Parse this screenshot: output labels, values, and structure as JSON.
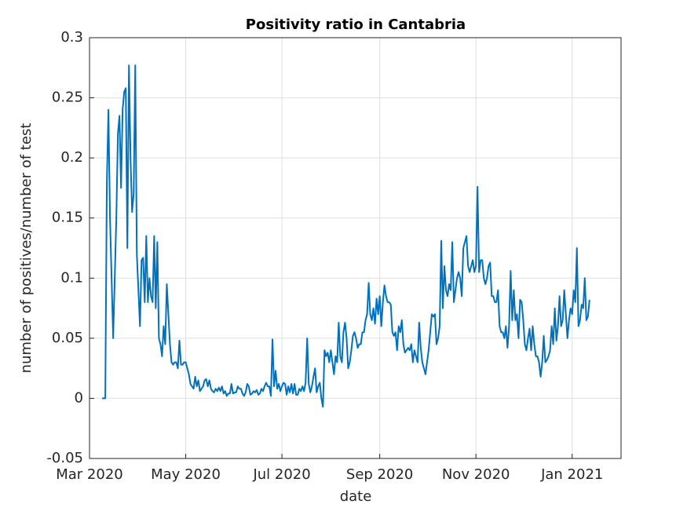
{
  "chart_data": {
    "type": "line",
    "title": "Positivity ratio in Cantabria",
    "xlabel": "date",
    "ylabel": "number of positives/number of test",
    "xlim": [
      0,
      337
    ],
    "xticks": [
      {
        "value": 0,
        "label": "Mar 2020"
      },
      {
        "value": 61,
        "label": "May 2020"
      },
      {
        "value": 122,
        "label": "Jul 2020"
      },
      {
        "value": 184,
        "label": "Sep 2020"
      },
      {
        "value": 245,
        "label": "Nov 2020"
      },
      {
        "value": 306,
        "label": "Jan 2021"
      }
    ],
    "ylim": [
      -0.05,
      0.3
    ],
    "yticks": [
      -0.05,
      0,
      0.05,
      0.1,
      0.15,
      0.2,
      0.25,
      0.3
    ],
    "grid": true,
    "series": [
      {
        "color": "#0072bd",
        "x": [
          8,
          9,
          10,
          11,
          12,
          13,
          14,
          15,
          16,
          17,
          18,
          19,
          20,
          21,
          22,
          23,
          24,
          25,
          26,
          27,
          28,
          29,
          30,
          31,
          32,
          33,
          34,
          35,
          36,
          37,
          38,
          39,
          40,
          41,
          42,
          43,
          44,
          45,
          46,
          47,
          48,
          49,
          50,
          51,
          52,
          53,
          54,
          55,
          56,
          57,
          58,
          59,
          60,
          61,
          62,
          63,
          64,
          65,
          66,
          67,
          68,
          69,
          70,
          71,
          72,
          73,
          74,
          75,
          76,
          77,
          78,
          79,
          80,
          81,
          82,
          83,
          84,
          85,
          86,
          87,
          88,
          89,
          90,
          91,
          92,
          93,
          94,
          95,
          96,
          97,
          98,
          99,
          100,
          101,
          102,
          103,
          104,
          105,
          106,
          107,
          108,
          109,
          110,
          111,
          112,
          113,
          114,
          115,
          116,
          117,
          118,
          119,
          120,
          121,
          122,
          123,
          124,
          125,
          126,
          127,
          128,
          129,
          130,
          131,
          132,
          133,
          134,
          135,
          136,
          137,
          138,
          139,
          140,
          141,
          142,
          143,
          144,
          145,
          146,
          147,
          148,
          149,
          150,
          151,
          152,
          153,
          154,
          155,
          156,
          157,
          158,
          159,
          160,
          161,
          162,
          163,
          164,
          165,
          166,
          167,
          168,
          169,
          170,
          171,
          172,
          173,
          174,
          175,
          176,
          177,
          178,
          179,
          180,
          181,
          182,
          183,
          184,
          185,
          186,
          187,
          188,
          189,
          190,
          191,
          192,
          193,
          194,
          195,
          196,
          197,
          198,
          199,
          200,
          201,
          202,
          203,
          204,
          205,
          206,
          207,
          208,
          209,
          210,
          211,
          212,
          213,
          214,
          215,
          216,
          217,
          218,
          219,
          220,
          221,
          222,
          223,
          224,
          225,
          226,
          227,
          228,
          229,
          230,
          231,
          232,
          233,
          234,
          235,
          236,
          237,
          238,
          239,
          240,
          241,
          242,
          243,
          244,
          245,
          246,
          247,
          248,
          249,
          250,
          251,
          252,
          253,
          254,
          255,
          256,
          257,
          258,
          259,
          260,
          261,
          262,
          263,
          264,
          265,
          266,
          267,
          268,
          269,
          270,
          271,
          272,
          273,
          274,
          275,
          276,
          277,
          278,
          279,
          280,
          281,
          282,
          283,
          284,
          285,
          286,
          287,
          288,
          289,
          290,
          291,
          292,
          293,
          294,
          295,
          296,
          297,
          298,
          299,
          300,
          301,
          302,
          303,
          304,
          305,
          306,
          307,
          308,
          309,
          310,
          311,
          312,
          313,
          314,
          315,
          316,
          317
        ],
        "values": [
          0,
          0,
          0,
          0.18,
          0.24,
          0.15,
          0.1,
          0.05,
          0.1,
          0.15,
          0.22,
          0.235,
          0.175,
          0.24,
          0.255,
          0.258,
          0.125,
          0.277,
          0.2,
          0.155,
          0.17,
          0.277,
          0.12,
          0.09,
          0.06,
          0.115,
          0.117,
          0.08,
          0.135,
          0.08,
          0.1,
          0.085,
          0.08,
          0.135,
          0.075,
          0.13,
          0.05,
          0.045,
          0.035,
          0.06,
          0.045,
          0.095,
          0.07,
          0.045,
          0.03,
          0.028,
          0.03,
          0.03,
          0.025,
          0.048,
          0.028,
          0.028,
          0.03,
          0.03,
          0.025,
          0.02,
          0.012,
          0.01,
          0.008,
          0.018,
          0.01,
          0.015,
          0.006,
          0.008,
          0.01,
          0.015,
          0.016,
          0.01,
          0.015,
          0.008,
          0.006,
          0.005,
          0.008,
          0.006,
          0.009,
          0.006,
          0.01,
          0.004,
          0.006,
          0.002,
          0.004,
          0.004,
          0.012,
          0.004,
          0.005,
          0.005,
          0.01,
          0.008,
          0.008,
          0.004,
          0.002,
          0.005,
          0.012,
          0.01,
          0.003,
          0.004,
          0.006,
          0.005,
          0.007,
          0.003,
          0.004,
          0.008,
          0.006,
          0.01,
          0.013,
          0.01,
          0.01,
          0.002,
          0.049,
          0.01,
          0.023,
          0.008,
          0.012,
          0.006,
          0.01,
          0.013,
          0.012,
          0.003,
          0.01,
          0.005,
          0.012,
          0.004,
          0.012,
          0.003,
          0.003,
          0.008,
          0.006,
          0.01,
          0.006,
          0.013,
          0.05,
          0.012,
          0.005,
          0.01,
          0.018,
          0.025,
          0.005,
          0.01,
          0.013,
          0,
          -0.007,
          0.04,
          0.035,
          0.038,
          0.03,
          0.04,
          0.03,
          0.02,
          0.035,
          0.03,
          0.063,
          0.035,
          0.03,
          0.055,
          0.063,
          0.05,
          0.025,
          0.03,
          0.04,
          0.052,
          0.055,
          0.05,
          0.042,
          0.045,
          0.045,
          0.055,
          0.055,
          0.065,
          0.07,
          0.096,
          0.07,
          0.065,
          0.075,
          0.062,
          0.083,
          0.07,
          0.085,
          0.06,
          0.08,
          0.094,
          0.085,
          0.08,
          0.08,
          0.078,
          0.055,
          0.052,
          0.055,
          0.04,
          0.06,
          0.055,
          0.065,
          0.045,
          0.038,
          0.04,
          0.042,
          0.04,
          0.045,
          0.03,
          0.04,
          0.035,
          0.03,
          0.063,
          0.042,
          0.03,
          0.025,
          0.02,
          0.03,
          0.04,
          0.055,
          0.07,
          0.068,
          0.07,
          0.045,
          0.05,
          0.06,
          0.131,
          0.075,
          0.11,
          0.09,
          0.085,
          0.095,
          0.09,
          0.13,
          0.08,
          0.09,
          0.1,
          0.105,
          0.1,
          0.085,
          0.125,
          0.13,
          0.135,
          0.11,
          0.105,
          0.11,
          0.115,
          0.105,
          0.11,
          0.176,
          0.105,
          0.115,
          0.115,
          0.1,
          0.095,
          0.1,
          0.11,
          0.113,
          0.085,
          0.085,
          0.08,
          0.08,
          0.09,
          0.06,
          0.055,
          0.055,
          0.05,
          0.06,
          0.042,
          0.06,
          0.106,
          0.065,
          0.09,
          0.065,
          0.07,
          0.05,
          0.082,
          0.08,
          0.065,
          0.045,
          0.04,
          0.05,
          0.058,
          0.04,
          0.06,
          0.045,
          0.035,
          0.035,
          0.03,
          0.018,
          0.03,
          0.052,
          0.03,
          0.032,
          0.035,
          0.04,
          0.06,
          0.045,
          0.075,
          0.048,
          0.06,
          0.085,
          0.06,
          0.065,
          0.09,
          0.07,
          0.05,
          0.065,
          0.075,
          0.07,
          0.09,
          0.08,
          0.125,
          0.06,
          0.065,
          0.078,
          0.075,
          0.1,
          0.065,
          0.068,
          0.082
        ]
      }
    ]
  }
}
